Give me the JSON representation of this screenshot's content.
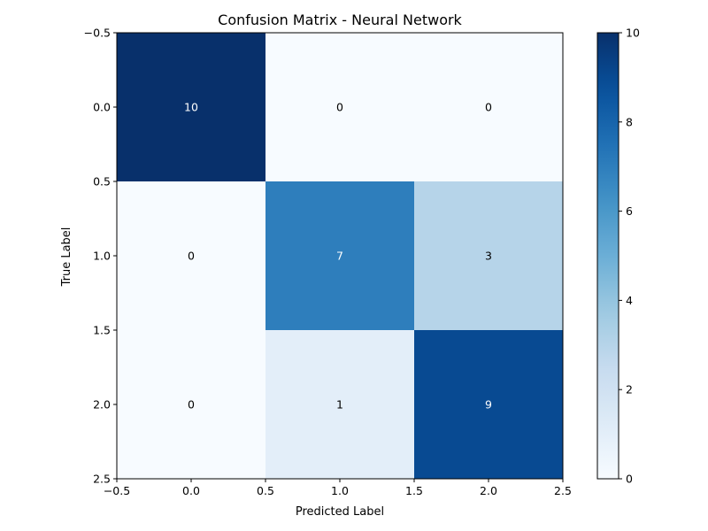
{
  "chart_data": {
    "type": "heatmap",
    "title": "Confusion Matrix - Neural Network",
    "xlabel": "Predicted Label",
    "ylabel": "True Label",
    "matrix": [
      [
        10,
        0,
        0
      ],
      [
        0,
        7,
        3
      ],
      [
        0,
        1,
        9
      ]
    ],
    "cell_labels": [
      [
        "10",
        "0",
        "0"
      ],
      [
        "0",
        "7",
        "3"
      ],
      [
        "0",
        "1",
        "9"
      ]
    ],
    "xlim": [
      -0.5,
      2.5
    ],
    "ylim": [
      2.5,
      -0.5
    ],
    "x_ticks": [
      "−0.5",
      "0.0",
      "0.5",
      "1.0",
      "1.5",
      "2.0",
      "2.5"
    ],
    "y_ticks": [
      "−0.5",
      "0.0",
      "0.5",
      "1.0",
      "1.5",
      "2.0",
      "2.5"
    ],
    "colormap": "Blues",
    "color_range": [
      0,
      10
    ],
    "colorbar": {
      "ticks": [
        "0",
        "2",
        "4",
        "6",
        "8",
        "10"
      ],
      "tick_values": [
        0,
        2,
        4,
        6,
        8,
        10
      ]
    },
    "colors": {
      "low": "#f7fbff",
      "high": "#08306b",
      "text_dark_cell": "#ffffff",
      "text_light_cell": "#000000"
    }
  }
}
